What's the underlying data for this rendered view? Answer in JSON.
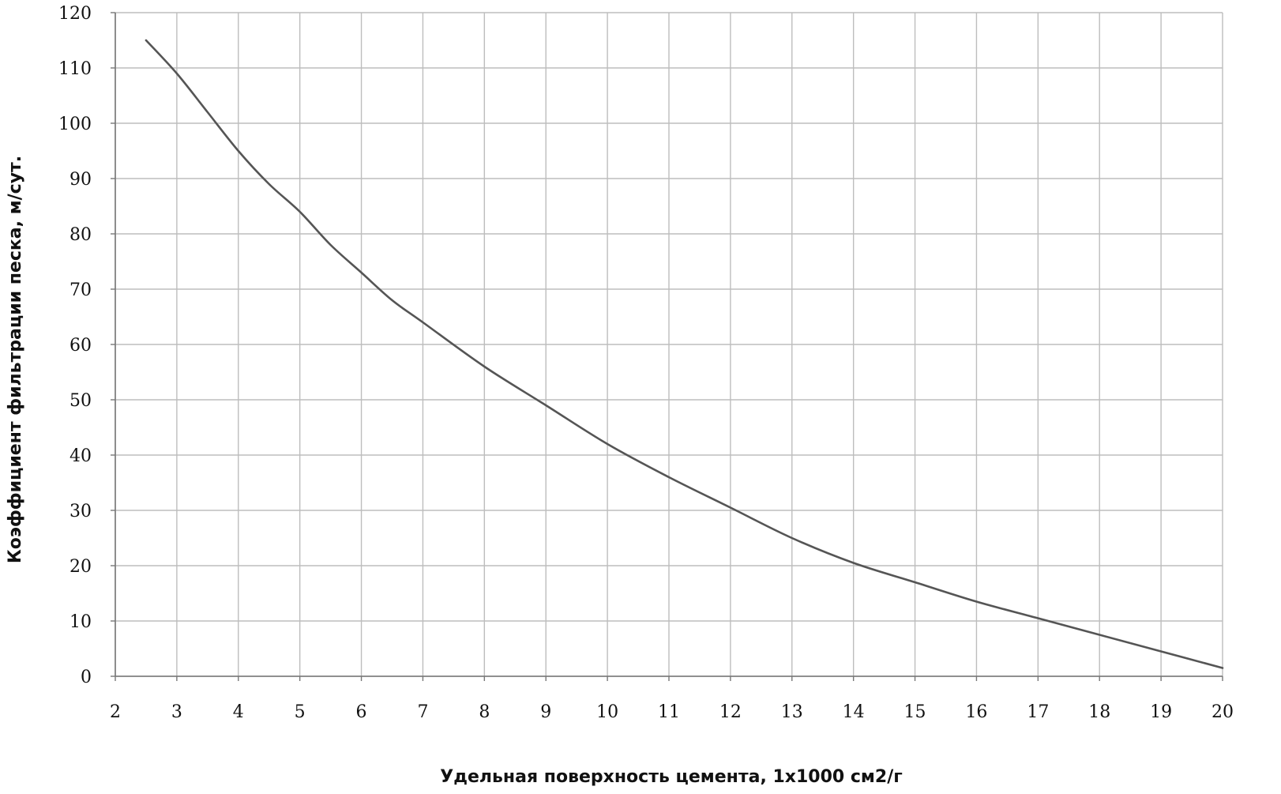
{
  "colors": {
    "background": "#ffffff",
    "grid": "#bdbdbd",
    "curve": "#555555",
    "axis": "#777777"
  },
  "chart_data": {
    "type": "line",
    "title": "",
    "xlabel": "Удельная поверхность цемента, 1х1000 см2/г",
    "ylabel": "Коэффициент фильтрации песка, м/сут.",
    "xlim": [
      2,
      20
    ],
    "ylim": [
      0,
      120
    ],
    "xticks": [
      2,
      3,
      4,
      5,
      6,
      7,
      8,
      9,
      10,
      11,
      12,
      13,
      14,
      15,
      16,
      17,
      18,
      19,
      20
    ],
    "yticks": [
      0,
      10,
      20,
      30,
      40,
      50,
      60,
      70,
      80,
      90,
      100,
      110,
      120
    ],
    "grid": true,
    "legend": "none",
    "series": [
      {
        "x": [
          2.5,
          3,
          3.5,
          4,
          4.5,
          5,
          5.5,
          6,
          6.5,
          7,
          8,
          9,
          10,
          11,
          12,
          13,
          14,
          15,
          16,
          17,
          18,
          19,
          20
        ],
        "y": [
          115,
          109,
          102,
          95,
          89,
          84,
          78,
          73,
          68,
          64,
          56,
          49,
          42,
          36,
          30.5,
          25,
          20.5,
          17,
          13.5,
          10.5,
          7.5,
          4.5,
          1.5
        ]
      }
    ]
  }
}
